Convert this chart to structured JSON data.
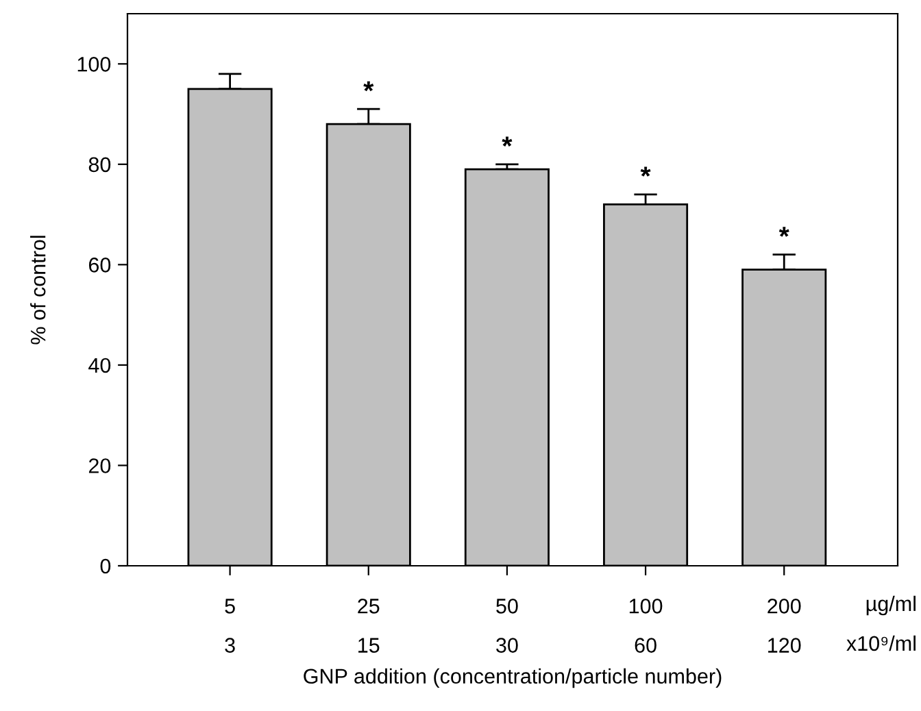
{
  "chart_data": {
    "type": "bar",
    "xlabel": "GNP addition (concentration/particle number)",
    "ylabel": "% of control",
    "categories": [
      "5\n3",
      "25\n15",
      "50\n30",
      "100\n60",
      "200\n120"
    ],
    "values": [
      95,
      88,
      79,
      72,
      59
    ],
    "errors": [
      [
        95,
        98
      ],
      [
        88,
        91
      ],
      [
        79,
        80
      ],
      [
        72,
        74
      ],
      [
        59,
        62
      ]
    ],
    "color": "#c0c0c0",
    "ylim": [
      0,
      110
    ],
    "yticks": [
      0,
      20,
      40,
      60,
      80,
      100
    ],
    "grid": false,
    "annotations": [
      "µg/ml",
      "x10⁹/ml",
      {
        "text": "*",
        "x": "25\n15",
        "y": 91
      },
      {
        "text": "*",
        "x": "50\n30",
        "y": 80
      },
      {
        "text": "*",
        "x": "100\n60",
        "y": 74
      },
      {
        "text": "*",
        "x": "200\n120",
        "y": 62
      }
    ]
  }
}
